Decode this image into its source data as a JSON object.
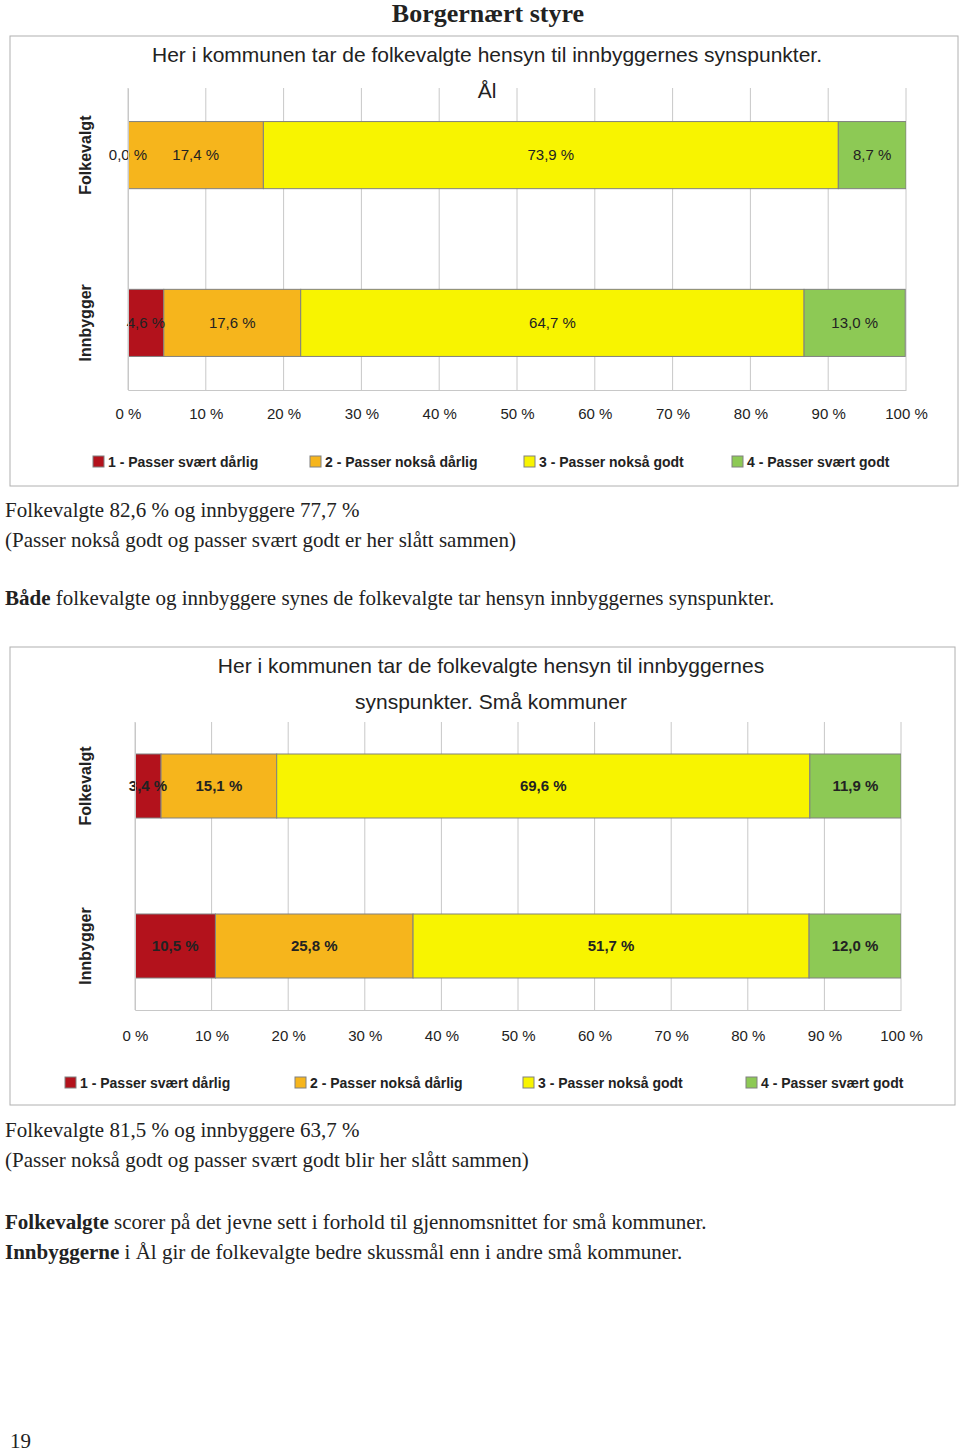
{
  "chart_data": [
    {
      "type": "bar",
      "title": "Her i kommunen tar de folkevalgte hensyn til innbyggernes synspunkter.",
      "subtitle": "Ål",
      "orientation": "horizontal",
      "stacked": true,
      "data_labels": true,
      "grid": true,
      "legend": "bottom",
      "categories": [
        "Folkevalgt",
        "Innbygger"
      ],
      "xlim": [
        0,
        100
      ],
      "xticks": [
        {
          "value": 0,
          "label": "0 %"
        },
        {
          "value": 10,
          "label": "10 %"
        },
        {
          "value": 20,
          "label": "20 %"
        },
        {
          "value": 30,
          "label": "30 %"
        },
        {
          "value": 40,
          "label": "40 %"
        },
        {
          "value": 50,
          "label": "50 %"
        },
        {
          "value": 60,
          "label": "60 %"
        },
        {
          "value": 70,
          "label": "70 %"
        },
        {
          "value": 80,
          "label": "80 %"
        },
        {
          "value": 90,
          "label": "90 %"
        },
        {
          "value": 100,
          "label": "100 %"
        }
      ],
      "series": [
        {
          "name": "1 - Passer svært dårlig",
          "color": "#b3121c",
          "values": [
            0.0,
            4.6
          ],
          "value_labels": [
            "0,0 %",
            "4,6 %"
          ]
        },
        {
          "name": "2 - Passer nokså dårlig",
          "color": "#f6b51c",
          "values": [
            17.4,
            17.6
          ],
          "value_labels": [
            "17,4 %",
            "17,6 %"
          ]
        },
        {
          "name": "3 - Passer nokså godt",
          "color": "#f8f400",
          "values": [
            73.9,
            64.7
          ],
          "value_labels": [
            "73,9 %",
            "64,7 %"
          ]
        },
        {
          "name": "4 - Passer svært godt",
          "color": "#8dc955",
          "values": [
            8.7,
            13.0
          ],
          "value_labels": [
            "8,7 %",
            "13,0 %"
          ]
        }
      ]
    },
    {
      "type": "bar",
      "title": "Her i kommunen tar de folkevalgte hensyn til innbyggernes synspunkter. Små kommuner",
      "orientation": "horizontal",
      "stacked": true,
      "data_labels": true,
      "grid": true,
      "legend": "bottom",
      "categories": [
        "Folkevalgt",
        "Innbygger"
      ],
      "xlim": [
        0,
        100
      ],
      "xticks": [
        {
          "value": 0,
          "label": "0 %"
        },
        {
          "value": 10,
          "label": "10 %"
        },
        {
          "value": 20,
          "label": "20 %"
        },
        {
          "value": 30,
          "label": "30 %"
        },
        {
          "value": 40,
          "label": "40 %"
        },
        {
          "value": 50,
          "label": "50 %"
        },
        {
          "value": 60,
          "label": "60 %"
        },
        {
          "value": 70,
          "label": "70 %"
        },
        {
          "value": 80,
          "label": "80 %"
        },
        {
          "value": 90,
          "label": "90 %"
        },
        {
          "value": 100,
          "label": "100 %"
        }
      ],
      "series": [
        {
          "name": "1 - Passer svært dårlig",
          "color": "#b3121c",
          "values": [
            3.4,
            10.5
          ],
          "value_labels": [
            "3,4 %",
            "10,5 %"
          ]
        },
        {
          "name": "2 - Passer nokså dårlig",
          "color": "#f6b51c",
          "values": [
            15.1,
            25.8
          ],
          "value_labels": [
            "15,1 %",
            "25,8 %"
          ]
        },
        {
          "name": "3 - Passer nokså godt",
          "color": "#f8f400",
          "values": [
            69.6,
            51.7
          ],
          "value_labels": [
            "69,6 %",
            "51,7 %"
          ]
        },
        {
          "name": "4 - Passer svært godt",
          "color": "#8dc955",
          "values": [
            11.9,
            12.0
          ],
          "value_labels": [
            "11,9 %",
            "12,0 %"
          ]
        }
      ]
    }
  ],
  "document": {
    "title": "Borgernært styre",
    "text_blocks": [
      [
        [
          {
            "text": "Folkevalgte 82,6 % og innbyggere 77,7 %"
          }
        ],
        [
          {
            "text": "(Passer nokså godt og passer svært godt er her slått sammen)"
          }
        ],
        [
          {
            "text": "Både",
            "bold": true
          },
          {
            "text": " folkevalgte og innbyggere synes de folkevalgte tar hensyn innbyggernes synspunkter."
          }
        ]
      ],
      [
        [
          {
            "text": "Folkevalgte 81,5 % og innbyggere 63,7 %"
          }
        ],
        [
          {
            "text": "(Passer nokså godt og passer svært godt blir her slått sammen)"
          }
        ],
        [
          {
            "text": "Folkevalgte",
            "bold": true
          },
          {
            "text": " scorer på det jevne sett i forhold til gjennomsnittet for små kommuner."
          }
        ],
        [
          {
            "text": "Innbyggerne",
            "bold": true
          },
          {
            "text": " i Ål gir de folkevalgte bedre skussmål enn i andre små kommuner."
          }
        ]
      ]
    ],
    "page_number": "19"
  }
}
